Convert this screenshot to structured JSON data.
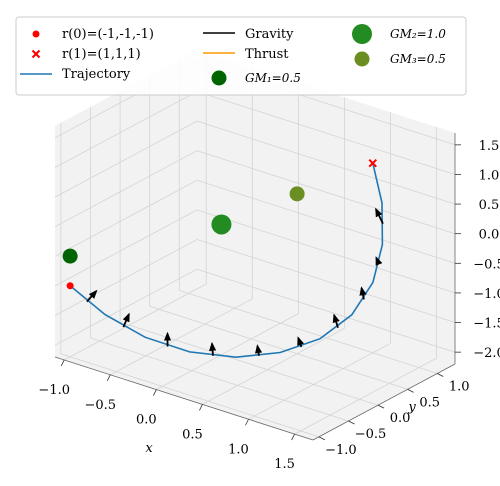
{
  "chart_data": {
    "type": "scatter",
    "projection": "3d",
    "xlabel": "x",
    "ylabel": "y",
    "zlabel": "",
    "xlim": [
      -1.1,
      1.7
    ],
    "ylim": [
      -1.1,
      1.3
    ],
    "zlim": [
      -2.2,
      1.7
    ],
    "xticks": [
      -1.0,
      -0.5,
      0.0,
      0.5,
      1.0,
      1.5
    ],
    "yticks": [
      -1.0,
      -0.5,
      0.0,
      0.5,
      1.0
    ],
    "zticks": [
      -2.0,
      -1.5,
      -1.0,
      -0.5,
      0.0,
      0.5,
      1.0,
      1.5
    ],
    "xtick_labels": [
      "−1.0",
      "−0.5",
      "0.0",
      "0.5",
      "1.0",
      "1.5"
    ],
    "ytick_labels": [
      "−1.0",
      "−0.5",
      "0.0",
      "0.5",
      "1.0"
    ],
    "ztick_labels": [
      "−2.0",
      "−1.5",
      "−1.0",
      "−0.5",
      "0.0",
      "0.5",
      "1.0",
      "1.5"
    ],
    "grid": true,
    "legend_position": "top",
    "start_point": {
      "label": "r(0)=(-1,-1,-1)",
      "x": -1,
      "y": -1,
      "z": -1,
      "color": "#ff0000",
      "marker": "dot"
    },
    "end_point": {
      "label": "r(1)=(1,1,1)",
      "x": 1,
      "y": 1,
      "z": 1,
      "color": "#ff0000",
      "marker": "x"
    },
    "trajectory": {
      "label": "Trajectory",
      "color": "#1f77b4",
      "x": [
        -1.0,
        -0.7,
        -0.38,
        -0.05,
        0.28,
        0.58,
        0.84,
        1.03,
        1.13,
        1.15,
        1.1,
        1.0
      ],
      "y": [
        -1.0,
        -0.88,
        -0.7,
        -0.46,
        -0.19,
        0.09,
        0.36,
        0.6,
        0.8,
        0.93,
        1.0,
        1.0
      ],
      "z": [
        -1.0,
        -1.4,
        -1.72,
        -1.93,
        -2.0,
        -1.92,
        -1.7,
        -1.33,
        -0.84,
        -0.26,
        0.38,
        1.0
      ]
    },
    "gravity_label": "Gravity",
    "gravity_color": "#000000",
    "thrust_label": "Thrust",
    "thrust_color": "#ff9900",
    "gravity_vectors": [
      {
        "x": -0.85,
        "y": -0.95,
        "z": -1.22,
        "dx": 0.05,
        "dy": 0.08,
        "dz": 0.16
      },
      {
        "x": -0.55,
        "y": -0.8,
        "z": -1.58,
        "dx": 0.04,
        "dy": 0.03,
        "dz": 0.22
      },
      {
        "x": -0.2,
        "y": -0.6,
        "z": -1.84,
        "dx": 0.0,
        "dy": 0.0,
        "dz": 0.22
      },
      {
        "x": 0.12,
        "y": -0.33,
        "z": -1.98,
        "dx": -0.01,
        "dy": 0.0,
        "dz": 0.2
      },
      {
        "x": 0.44,
        "y": -0.05,
        "z": -1.97,
        "dx": -0.03,
        "dy": 0.02,
        "dz": 0.14
      },
      {
        "x": 0.72,
        "y": 0.23,
        "z": -1.83,
        "dx": -0.06,
        "dy": 0.04,
        "dz": 0.1
      },
      {
        "x": 0.95,
        "y": 0.49,
        "z": -1.53,
        "dx": -0.08,
        "dy": 0.06,
        "dz": 0.14
      },
      {
        "x": 1.09,
        "y": 0.71,
        "z": -1.1,
        "dx": -0.07,
        "dy": 0.07,
        "dz": 0.12
      },
      {
        "x": 1.15,
        "y": 0.87,
        "z": -0.56,
        "dx": -0.06,
        "dy": 0.05,
        "dz": 0.05
      },
      {
        "x": 1.13,
        "y": 0.97,
        "z": 0.06,
        "dx": -0.14,
        "dy": 0.1,
        "dz": 0.12
      }
    ],
    "masses": [
      {
        "label": "GM₁=0.5",
        "value": 0.5,
        "x": -1.0,
        "y": -1.0,
        "z": -0.5,
        "color": "#006400",
        "size": 15
      },
      {
        "label": "GM₂=1.0",
        "value": 1.0,
        "x": 0.0,
        "y": 0.0,
        "z": 0.0,
        "color": "#228b22",
        "size": 20
      },
      {
        "label": "GM₃=0.5",
        "value": 0.5,
        "x": 0.5,
        "y": 0.5,
        "z": 0.5,
        "color": "#6b8e23",
        "size": 15
      }
    ]
  }
}
